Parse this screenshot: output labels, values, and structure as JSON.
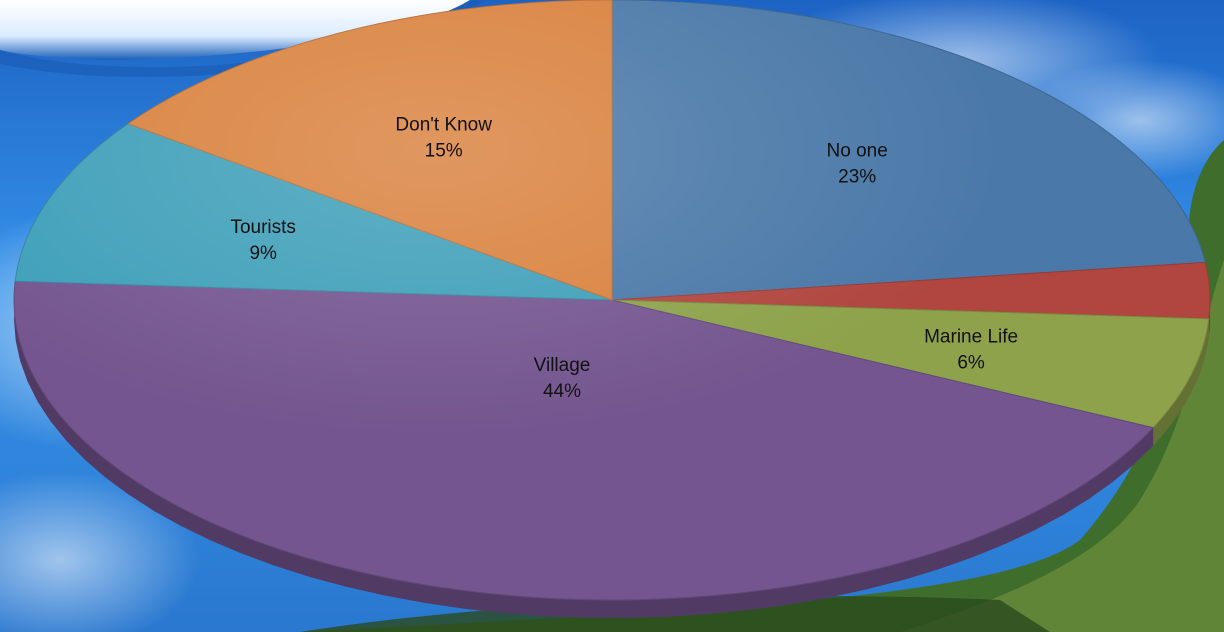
{
  "chart_data": {
    "type": "pie",
    "slices": [
      {
        "label": "No one",
        "value": 23,
        "display": "23%",
        "color": "#4a78a8"
      },
      {
        "label": "",
        "value": 3,
        "display": "",
        "color": "#b0463f"
      },
      {
        "label": "Marine Life",
        "value": 6,
        "display": "6%",
        "color": "#8da24a"
      },
      {
        "label": "Village",
        "value": 44,
        "display": "44%",
        "color": "#74558f"
      },
      {
        "label": "Tourists",
        "value": 9,
        "display": "9%",
        "color": "#3e9fb9"
      },
      {
        "label": "Don't Know",
        "value": 15,
        "display": "15%",
        "color": "#d9813d"
      }
    ],
    "start_angle_deg": -90,
    "direction": "clockwise",
    "style": "3d-tilted",
    "legend": "none"
  },
  "background": {
    "sky_color": "#2a86e8",
    "foliage_color": "#3f6e2c"
  }
}
